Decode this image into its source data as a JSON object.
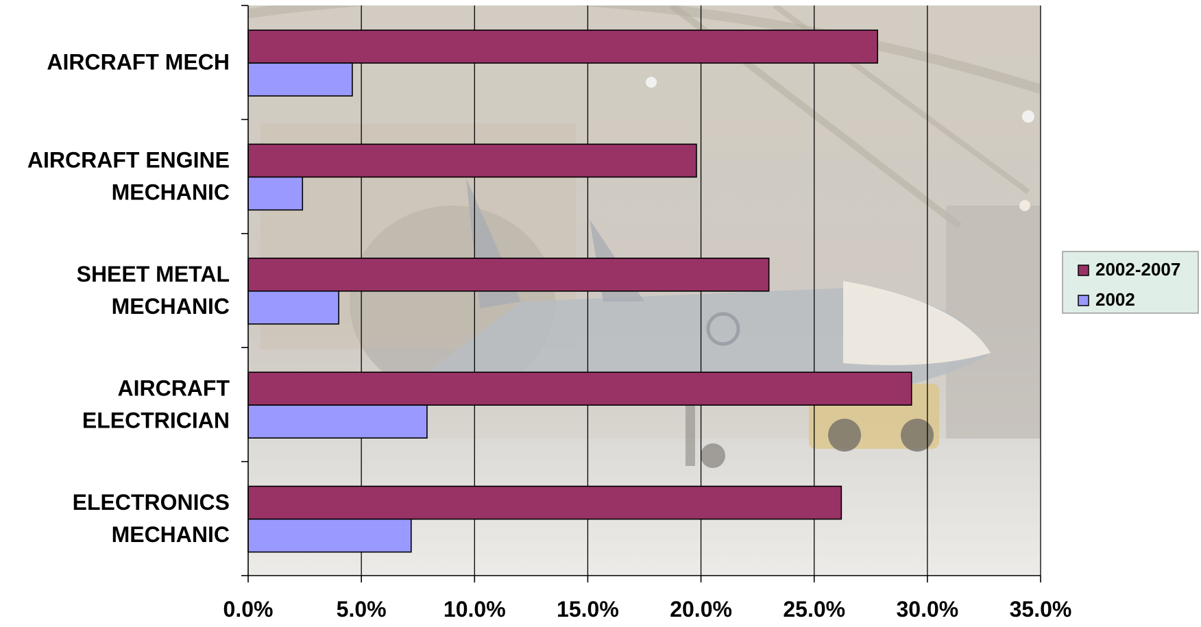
{
  "chart_data": {
    "type": "bar",
    "orientation": "horizontal",
    "categories": [
      [
        "AIRCRAFT MECH"
      ],
      [
        "AIRCRAFT ENGINE",
        "MECHANIC"
      ],
      [
        "SHEET METAL",
        "MECHANIC"
      ],
      [
        "AIRCRAFT",
        "ELECTRICIAN"
      ],
      [
        "ELECTRONICS",
        "MECHANIC"
      ]
    ],
    "series": [
      {
        "name": "2002-2007",
        "values": [
          27.8,
          19.8,
          23.0,
          29.3,
          26.2
        ]
      },
      {
        "name": "2002",
        "values": [
          4.6,
          2.4,
          4.0,
          7.9,
          7.2
        ]
      }
    ],
    "xlim": [
      0,
      35
    ],
    "x_ticks": [
      0,
      5,
      10,
      15,
      20,
      25,
      30,
      35
    ],
    "x_tick_labels": [
      "0.0%",
      "5.0%",
      "10.0%",
      "15.0%",
      "20.0%",
      "25.0%",
      "30.0%",
      "35.0%"
    ],
    "grid": "vertical",
    "legend_position": "right",
    "background": "photo of a jet aircraft in a hangar (faded)",
    "colors": {
      "series": [
        "#993366",
        "#9999ff"
      ],
      "legend_bg": "#dfeee6",
      "gridline": "#000000"
    }
  }
}
